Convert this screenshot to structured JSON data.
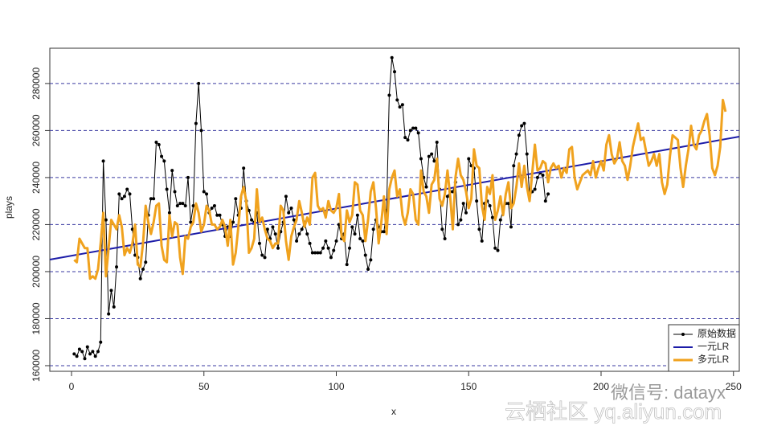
{
  "chart_data": {
    "type": "line",
    "xlabel": "x",
    "ylabel": "plays",
    "xlim": [
      -8.2,
      252.2
    ],
    "ylim": [
      157600,
      295000
    ],
    "xticks": [
      0,
      50,
      100,
      150,
      200,
      250
    ],
    "yticks": [
      160000,
      180000,
      200000,
      220000,
      240000,
      260000,
      280000
    ],
    "grid": true,
    "grid_color": "#3a3aa0",
    "legend": "bottom-right",
    "watermarks": [
      "微信号: datayx",
      "云栖社区 yq.aliyun.com"
    ],
    "series": [
      {
        "name": "原始数据",
        "color": "#000000",
        "markers": true,
        "x": [
          1,
          2,
          3,
          4,
          5,
          6,
          7,
          8,
          9,
          10,
          11,
          12,
          13,
          14,
          15,
          16,
          17,
          18,
          19,
          20,
          21,
          22,
          23,
          24,
          25,
          26,
          27,
          28,
          29,
          30,
          31,
          32,
          33,
          34,
          35,
          36,
          37,
          38,
          39,
          40,
          41,
          42,
          43,
          44,
          45,
          46,
          47,
          48,
          49,
          50,
          51,
          52,
          53,
          54,
          55,
          56,
          57,
          58,
          59,
          60,
          61,
          62,
          63,
          64,
          65,
          66,
          67,
          68,
          69,
          70,
          71,
          72,
          73,
          74,
          75,
          76,
          77,
          78,
          79,
          80,
          81,
          82,
          83,
          84,
          85,
          86,
          87,
          88,
          89,
          90,
          91,
          92,
          93,
          94,
          95,
          96,
          97,
          98,
          99,
          100,
          101,
          102,
          103,
          104,
          105,
          106,
          107,
          108,
          109,
          110,
          111,
          112,
          113,
          114,
          115,
          116,
          117,
          118,
          119,
          120,
          121,
          122,
          123,
          124,
          125,
          126,
          127,
          128,
          129,
          130,
          131,
          132,
          133,
          134,
          135,
          136,
          137,
          138,
          139,
          140,
          141,
          142,
          143,
          144,
          145,
          146,
          147,
          148,
          149,
          150,
          151,
          152,
          153,
          154,
          155,
          156,
          157,
          158,
          159,
          160,
          161,
          162,
          163,
          164,
          165,
          166,
          167,
          168,
          169,
          170,
          171,
          172,
          173,
          174,
          175,
          176,
          177,
          178,
          179,
          180
        ],
        "values": [
          165000,
          164000,
          167000,
          166000,
          163000,
          168000,
          165000,
          166000,
          164000,
          166000,
          170000,
          247000,
          222000,
          182000,
          192000,
          185000,
          202000,
          233000,
          231000,
          232000,
          235000,
          233000,
          218000,
          207000,
          206000,
          197000,
          201000,
          204000,
          224000,
          231000,
          231000,
          255000,
          254000,
          249000,
          247000,
          235000,
          225000,
          243000,
          234000,
          228000,
          229000,
          229000,
          228000,
          240000,
          221000,
          228000,
          263000,
          280000,
          260000,
          234000,
          233000,
          225000,
          227000,
          228000,
          224000,
          224000,
          220000,
          215000,
          219000,
          215000,
          221000,
          231000,
          224000,
          227000,
          244000,
          230000,
          226000,
          222000,
          221000,
          225000,
          212000,
          207000,
          206000,
          218000,
          214000,
          219000,
          216000,
          210000,
          217000,
          221000,
          232000,
          225000,
          227000,
          222000,
          213000,
          216000,
          218000,
          221000,
          216000,
          212000,
          208000,
          208000,
          208000,
          208000,
          210000,
          213000,
          210000,
          206000,
          209000,
          213000,
          220000,
          214000,
          216000,
          203000,
          210000,
          219000,
          216000,
          224000,
          214000,
          213000,
          207000,
          201000,
          205000,
          218000,
          222000,
          219000,
          217000,
          217000,
          226000,
          275000,
          291000,
          285000,
          273000,
          270000,
          271000,
          257000,
          256000,
          260000,
          261000,
          261000,
          259000,
          248000,
          240000,
          236000,
          249000,
          250000,
          247000,
          255000,
          235000,
          218000,
          214000,
          232000,
          234000,
          234000,
          238000,
          220000,
          222000,
          229000,
          225000,
          248000,
          245000,
          244000,
          230000,
          218000,
          213000,
          229000,
          230000,
          228000,
          223000,
          210000,
          209000,
          222000,
          226000,
          229000,
          229000,
          219000,
          245000,
          250000,
          258000,
          262000,
          263000,
          250000,
          232000,
          234000,
          235000,
          240000,
          242000,
          241000,
          230000,
          233000
        ]
      },
      {
        "name": "一元LR",
        "color": "#1c1ca8",
        "markers": false,
        "x": [
          -8.2,
          252.2
        ],
        "values": [
          205100,
          257400
        ]
      },
      {
        "name": "多元LR",
        "color": "#f0a21e",
        "markers": false,
        "x": [
          1,
          2,
          3,
          4,
          5,
          6,
          7,
          8,
          9,
          10,
          11,
          12,
          13,
          14,
          15,
          16,
          17,
          18,
          19,
          20,
          21,
          22,
          23,
          24,
          25,
          26,
          27,
          28,
          29,
          30,
          31,
          32,
          33,
          34,
          35,
          36,
          37,
          38,
          39,
          40,
          41,
          42,
          43,
          44,
          45,
          46,
          47,
          48,
          49,
          50,
          51,
          52,
          53,
          54,
          55,
          56,
          57,
          58,
          59,
          60,
          61,
          62,
          63,
          64,
          65,
          66,
          67,
          68,
          69,
          70,
          71,
          72,
          73,
          74,
          75,
          76,
          77,
          78,
          79,
          80,
          81,
          82,
          83,
          84,
          85,
          86,
          87,
          88,
          89,
          90,
          91,
          92,
          93,
          94,
          95,
          96,
          97,
          98,
          99,
          100,
          101,
          102,
          103,
          104,
          105,
          106,
          107,
          108,
          109,
          110,
          111,
          112,
          113,
          114,
          115,
          116,
          117,
          118,
          119,
          120,
          121,
          122,
          123,
          124,
          125,
          126,
          127,
          128,
          129,
          130,
          131,
          132,
          133,
          134,
          135,
          136,
          137,
          138,
          139,
          140,
          141,
          142,
          143,
          144,
          145,
          146,
          147,
          148,
          149,
          150,
          151,
          152,
          153,
          154,
          155,
          156,
          157,
          158,
          159,
          160,
          161,
          162,
          163,
          164,
          165,
          166,
          167,
          168,
          169,
          170,
          171,
          172,
          173,
          174,
          175,
          176,
          177,
          178,
          179,
          180,
          181,
          182,
          183,
          184,
          185,
          186,
          187,
          188,
          189,
          190,
          191,
          192,
          193,
          194,
          195,
          196,
          197,
          198,
          199,
          200,
          201,
          202,
          203,
          204,
          205,
          206,
          207,
          208,
          209,
          210,
          211,
          212,
          213,
          214,
          215,
          216,
          217,
          218,
          219,
          220,
          221,
          222,
          223,
          224,
          225,
          226,
          227,
          228,
          229,
          230,
          231,
          232,
          233,
          234,
          235,
          236,
          237,
          238,
          239,
          240,
          241,
          242,
          243,
          244,
          245,
          246,
          247
        ],
        "values": [
          205000,
          204000,
          214000,
          212000,
          210000,
          210000,
          197000,
          198000,
          197000,
          201000,
          212000,
          225000,
          198000,
          210000,
          222000,
          220000,
          218000,
          224000,
          219000,
          207000,
          210000,
          208000,
          212000,
          220000,
          203000,
          202000,
          212000,
          228000,
          221000,
          216000,
          221000,
          228000,
          229000,
          211000,
          205000,
          204000,
          224000,
          215000,
          221000,
          220000,
          206000,
          199000,
          215000,
          214000,
          219000,
          221000,
          229000,
          225000,
          217000,
          220000,
          228000,
          226000,
          220000,
          220000,
          218000,
          219000,
          222000,
          219000,
          211000,
          222000,
          203000,
          208000,
          219000,
          232000,
          236000,
          230000,
          208000,
          210000,
          214000,
          235000,
          221000,
          223000,
          218000,
          214000,
          213000,
          210000,
          212000,
          212000,
          228000,
          226000,
          213000,
          205000,
          215000,
          219000,
          222000,
          230000,
          225000,
          219000,
          223000,
          220000,
          240000,
          242000,
          228000,
          226000,
          227000,
          223000,
          230000,
          226000,
          225000,
          227000,
          233000,
          215000,
          213000,
          226000,
          221000,
          224000,
          238000,
          237000,
          226000,
          224000,
          213000,
          222000,
          234000,
          238000,
          227000,
          212000,
          221000,
          232000,
          216000,
          235000,
          240000,
          243000,
          232000,
          235000,
          224000,
          220000,
          225000,
          235000,
          233000,
          222000,
          220000,
          243000,
          234000,
          232000,
          225000,
          237000,
          239000,
          248000,
          231000,
          228000,
          233000,
          243000,
          232000,
          218000,
          240000,
          248000,
          241000,
          239000,
          234000,
          227000,
          231000,
          252000,
          245000,
          244000,
          228000,
          222000,
          236000,
          233000,
          241000,
          222000,
          226000,
          232000,
          224000,
          233000,
          238000,
          227000,
          229000,
          236000,
          246000,
          236000,
          245000,
          236000,
          230000,
          242000,
          254000,
          243000,
          244000,
          247000,
          246000,
          238000,
          244000,
          246000,
          244000,
          245000,
          240000,
          244000,
          242000,
          252000,
          253000,
          240000,
          235000,
          238000,
          241000,
          242000,
          243000,
          241000,
          247000,
          240000,
          244000,
          247000,
          243000,
          254000,
          258000,
          250000,
          246000,
          248000,
          255000,
          247000,
          245000,
          239000,
          245000,
          253000,
          258000,
          263000,
          256000,
          257000,
          251000,
          245000,
          247000,
          250000,
          245000,
          250000,
          238000,
          233000,
          237000,
          249000,
          258000,
          257000,
          256000,
          244000,
          236000,
          245000,
          252000,
          262000,
          254000,
          252000,
          258000,
          260000,
          264000,
          267000,
          258000,
          244000,
          241000,
          245000,
          253000,
          273000,
          268000
        ]
      }
    ]
  }
}
